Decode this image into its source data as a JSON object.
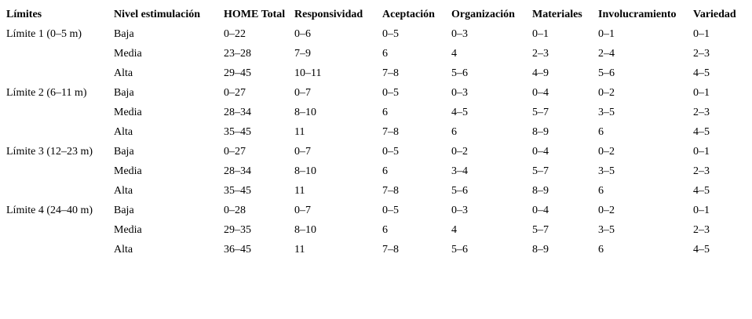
{
  "table": {
    "columns": [
      "Límites",
      "Nivel estimulación",
      "HOME Total",
      "Responsividad",
      "Aceptación",
      "Organización",
      "Materiales",
      "Involucramiento",
      "Variedad"
    ],
    "rows": [
      [
        "Límite 1 (0–5 m)",
        "Baja",
        "0–22",
        "0–6",
        "0–5",
        "0–3",
        "0–1",
        "0–1",
        "0–1"
      ],
      [
        "",
        "Media",
        "23–28",
        "7–9",
        "6",
        "4",
        "2–3",
        "2–4",
        "2–3"
      ],
      [
        "",
        "Alta",
        "29–45",
        "10–11",
        "7–8",
        "5–6",
        "4–9",
        "5–6",
        "4–5"
      ],
      [
        "Límite 2 (6–11 m)",
        "Baja",
        "0–27",
        "0–7",
        "0–5",
        "0–3",
        "0–4",
        "0–2",
        "0–1"
      ],
      [
        "",
        "Media",
        "28–34",
        "8–10",
        "6",
        "4–5",
        "5–7",
        "3–5",
        "2–3"
      ],
      [
        "",
        "Alta",
        "35–45",
        "11",
        "7–8",
        "6",
        "8–9",
        "6",
        "4–5"
      ],
      [
        "Límite 3 (12–23 m)",
        "Baja",
        "0–27",
        "0–7",
        "0–5",
        "0–2",
        "0–4",
        "0–2",
        "0–1"
      ],
      [
        "",
        "Media",
        "28–34",
        "8–10",
        "6",
        "3–4",
        "5–7",
        "3–5",
        "2–3"
      ],
      [
        "",
        "Alta",
        "35–45",
        "11",
        "7–8",
        "5–6",
        "8–9",
        "6",
        "4–5"
      ],
      [
        "Límite 4 (24–40 m)",
        "Baja",
        "0–28",
        "0–7",
        "0–5",
        "0–3",
        "0–4",
        "0–2",
        "0–1"
      ],
      [
        "",
        "Media",
        "29–35",
        "8–10",
        "6",
        "4",
        "5–7",
        "3–5",
        "2–3"
      ],
      [
        "",
        "Alta",
        "36–45",
        "11",
        "7–8",
        "5–6",
        "8–9",
        "6",
        "4–5"
      ]
    ]
  },
  "colors": {
    "background": "#ffffff",
    "text": "#000000"
  }
}
